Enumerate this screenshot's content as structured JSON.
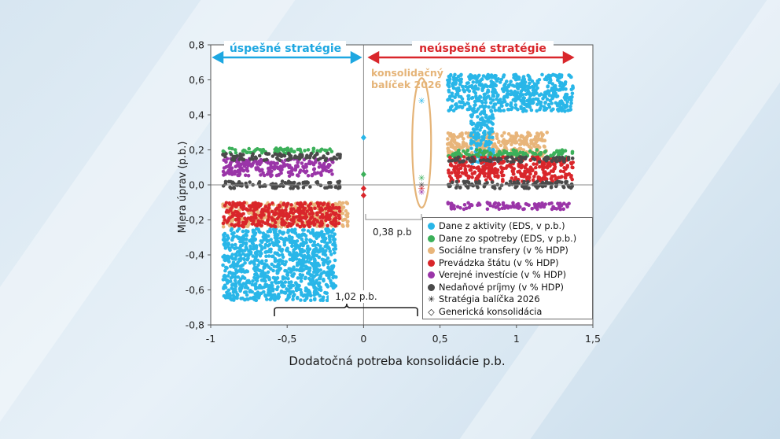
{
  "chart_data": {
    "type": "scatter",
    "title": "",
    "xlabel": "Dodatočná potreba konsolidácie p.b.",
    "ylabel": "Miera úprav (p.b.)",
    "xlim": [
      -1,
      1.5
    ],
    "ylim": [
      -0.8,
      0.8
    ],
    "xticks": [
      -1,
      -0.5,
      0,
      0.5,
      1,
      1.5
    ],
    "xtick_labels": [
      "-1",
      "-0,5",
      "0",
      "0,5",
      "1",
      "1,5"
    ],
    "yticks": [
      -0.8,
      -0.6,
      -0.4,
      -0.2,
      0,
      0.2,
      0.4,
      0.6,
      0.8
    ],
    "ytick_labels": [
      "-0,8",
      "-0,6",
      "-0,4",
      "-0,2",
      "0,0",
      "0,2",
      "0,4",
      "0,6",
      "0,8"
    ],
    "legend_position": "bottom-right",
    "annotations": {
      "left_region": "úspešné stratégie",
      "right_region": "neúspešné stratégie",
      "package": "konsolidačný balíček 2026",
      "gap_small": "0,38 p.b",
      "gap_large": "1,02 p.b."
    },
    "series": [
      {
        "name": "Dane z aktivity (EDS, v p.b.)",
        "color": "#29b6e8",
        "marker": "circle",
        "clusters": [
          {
            "x": [
              -0.92,
              -0.18
            ],
            "y": [
              -0.66,
              -0.25
            ]
          },
          {
            "x": [
              0.55,
              1.37
            ],
            "y": [
              0.42,
              0.63
            ]
          },
          {
            "x": [
              0.7,
              0.85
            ],
            "y": [
              0.12,
              0.42
            ]
          }
        ]
      },
      {
        "name": "Dane zo spotreby (EDS, v p.b.)",
        "color": "#3cb05a",
        "marker": "circle",
        "clusters": [
          {
            "x": [
              -0.92,
              -0.18
            ],
            "y": [
              0.18,
              0.21
            ]
          },
          {
            "x": [
              0.55,
              1.37
            ],
            "y": [
              0.16,
              0.2
            ]
          }
        ]
      },
      {
        "name": "Sociálne transfery (v % HDP)",
        "color": "#e8b57a",
        "marker": "circle",
        "clusters": [
          {
            "x": [
              -0.92,
              -0.1
            ],
            "y": [
              -0.24,
              -0.1
            ]
          },
          {
            "x": [
              0.55,
              1.2
            ],
            "y": [
              0.16,
              0.3
            ]
          }
        ]
      },
      {
        "name": "Prevádzka štátu (v % HDP)",
        "color": "#d9262b",
        "marker": "circle",
        "clusters": [
          {
            "x": [
              -0.92,
              -0.15
            ],
            "y": [
              -0.24,
              -0.1
            ]
          },
          {
            "x": [
              0.55,
              1.37
            ],
            "y": [
              0.02,
              0.16
            ]
          }
        ]
      },
      {
        "name": "Verejné investície (v % HDP)",
        "color": "#9a35a8",
        "marker": "circle",
        "clusters": [
          {
            "x": [
              -0.92,
              -0.2
            ],
            "y": [
              0.05,
              0.15
            ]
          },
          {
            "x": [
              0.55,
              1.37
            ],
            "y": [
              -0.14,
              -0.1
            ]
          }
        ]
      },
      {
        "name": "Nedaňové príjmy (v % HDP)",
        "color": "#4a4a4a",
        "marker": "circle",
        "clusters": [
          {
            "x": [
              -0.92,
              -0.15
            ],
            "y": [
              -0.02,
              0.02
            ]
          },
          {
            "x": [
              -0.92,
              -0.15
            ],
            "y": [
              0.14,
              0.18
            ]
          },
          {
            "x": [
              0.55,
              1.37
            ],
            "y": [
              -0.02,
              0.02
            ]
          },
          {
            "x": [
              0.55,
              1.37
            ],
            "y": [
              0.13,
              0.16
            ]
          }
        ]
      },
      {
        "name": "Stratégia balíčka 2026",
        "color": "#333333",
        "marker": "star",
        "points": [
          {
            "x": 0.38,
            "y": 0.48,
            "color": "#29b6e8"
          },
          {
            "x": 0.38,
            "y": 0.04,
            "color": "#3cb05a"
          },
          {
            "x": 0.38,
            "y": 0.0,
            "color": "#4a4a4a"
          },
          {
            "x": 0.38,
            "y": -0.02,
            "color": "#d9262b"
          },
          {
            "x": 0.38,
            "y": -0.04,
            "color": "#9a35a8"
          }
        ]
      },
      {
        "name": "Generická konsolidácia",
        "color": "#333333",
        "marker": "diamond",
        "points": [
          {
            "x": 0,
            "y": 0.27,
            "color": "#29b6e8"
          },
          {
            "x": 0,
            "y": 0.06,
            "color": "#3cb05a"
          },
          {
            "x": 0,
            "y": -0.02,
            "color": "#d9262b"
          },
          {
            "x": 0,
            "y": -0.06,
            "color": "#d9262b"
          }
        ]
      }
    ]
  }
}
